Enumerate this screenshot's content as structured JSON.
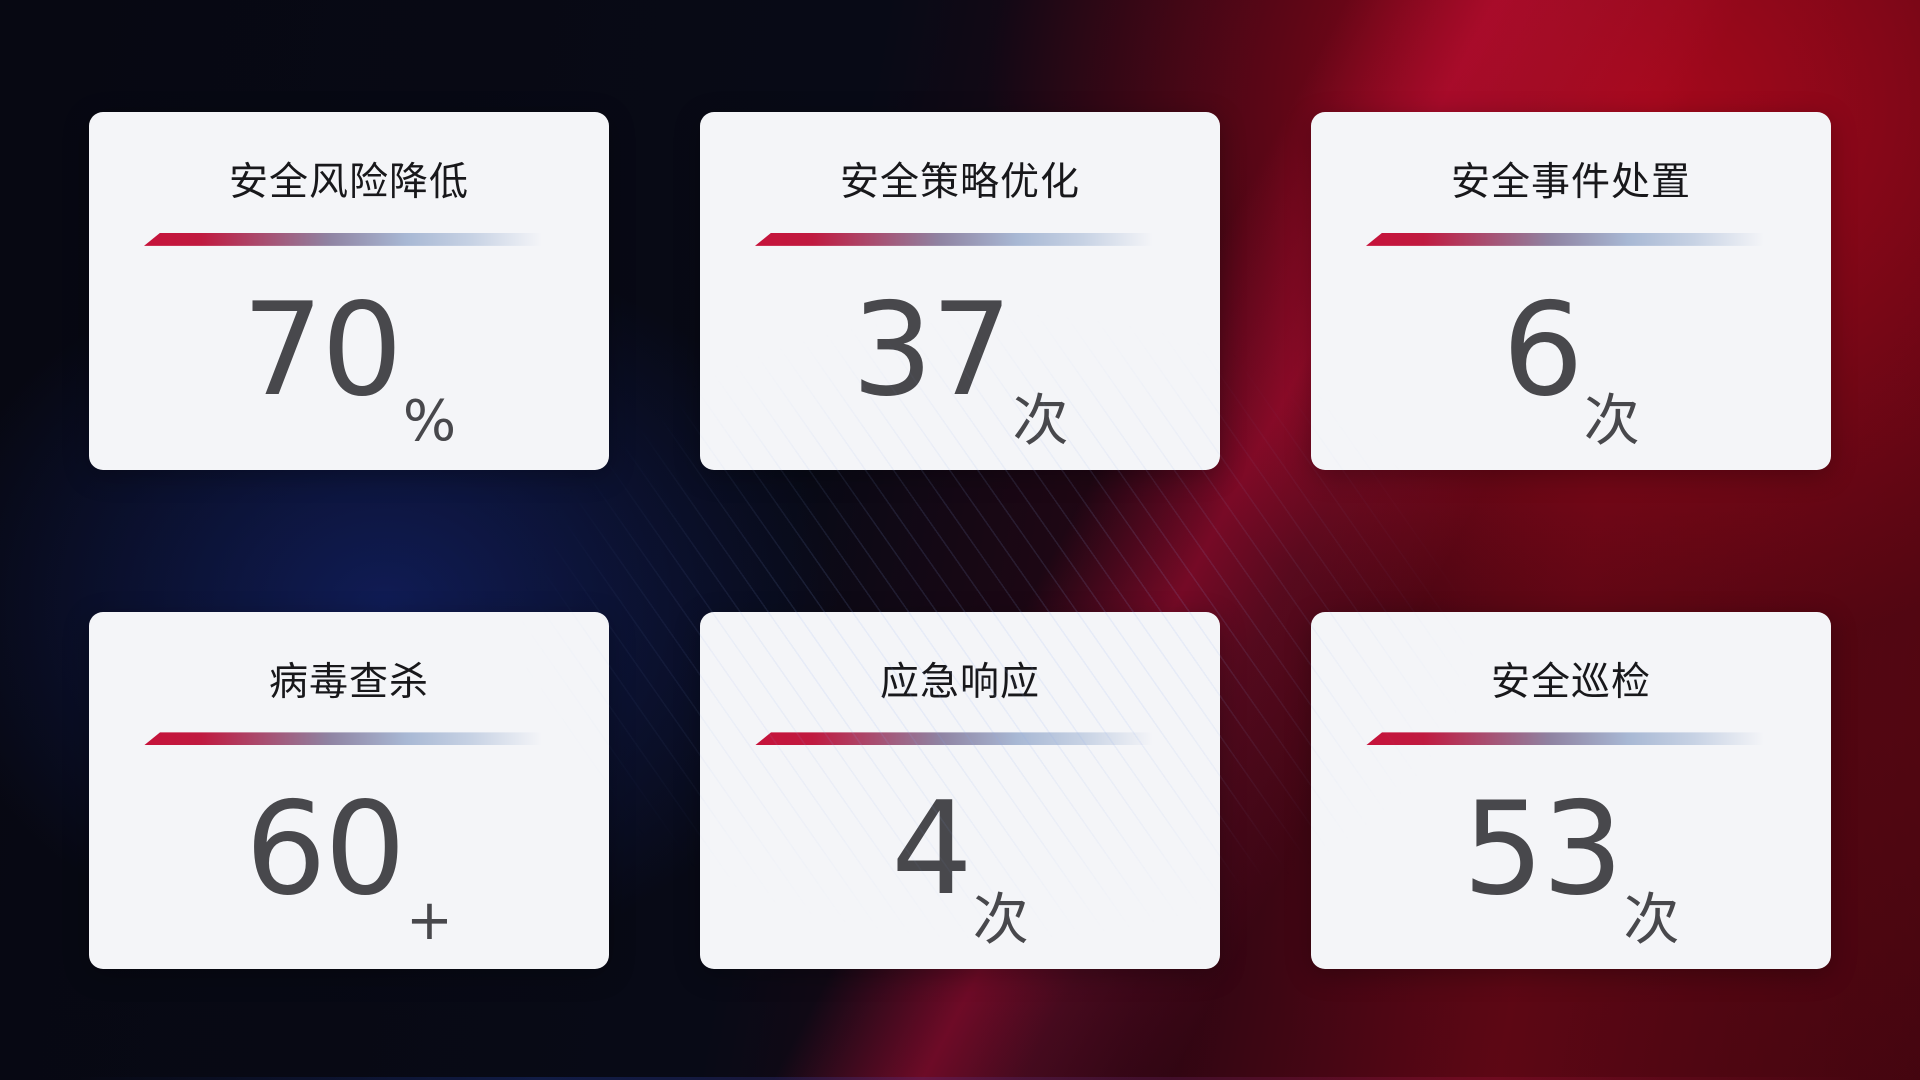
{
  "cards": [
    {
      "title": "安全风险降低",
      "value": "70",
      "suffix": "%"
    },
    {
      "title": "安全策略优化",
      "value": "37",
      "suffix": "次"
    },
    {
      "title": "安全事件处置",
      "value": "6",
      "suffix": "次"
    },
    {
      "title": "病毒查杀",
      "value": "60",
      "suffix": "+"
    },
    {
      "title": "应急响应",
      "value": "4",
      "suffix": "次"
    },
    {
      "title": "安全巡检",
      "value": "53",
      "suffix": "次"
    }
  ],
  "colors": {
    "card_bg": "#f4f5f8",
    "title_color": "#18181b",
    "number_color": "#48484c",
    "accent_red": "#c6123a",
    "accent_steel_blue": "#aebdd8",
    "bg_navy": "#0c1129",
    "bg_deep_red": "#8f0617"
  }
}
